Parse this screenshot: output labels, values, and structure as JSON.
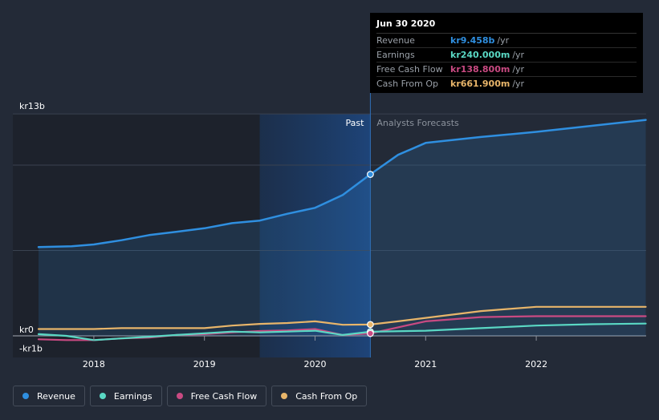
{
  "chart_data": {
    "type": "line",
    "x_range": [
      2017.5,
      2023.0
    ],
    "ylim": [
      -1.0,
      13.0
    ],
    "y_unit": "kr billions",
    "y_tick_labels": [
      {
        "value": 13,
        "label": "kr13b"
      },
      {
        "value": 0,
        "label": "kr0"
      },
      {
        "value": -1,
        "label": "-kr1b"
      }
    ],
    "x_ticks": [
      {
        "value": 2018,
        "label": "2018"
      },
      {
        "value": 2019,
        "label": "2019"
      },
      {
        "value": 2020,
        "label": "2020"
      },
      {
        "value": 2021,
        "label": "2021"
      },
      {
        "value": 2022,
        "label": "2022"
      }
    ],
    "gridlines": [
      13,
      10,
      5,
      0
    ],
    "past_label": "Past",
    "forecast_label": "Analysts Forecasts",
    "past_end_x": 2020.5,
    "highlight_start_x": 2019.5,
    "series": [
      {
        "key": "revenue",
        "name": "Revenue",
        "color": "#2f8fe0",
        "area": true,
        "points": [
          [
            2017.5,
            5.2
          ],
          [
            2017.8,
            5.25
          ],
          [
            2018.0,
            5.35
          ],
          [
            2018.25,
            5.6
          ],
          [
            2018.5,
            5.9
          ],
          [
            2018.75,
            6.1
          ],
          [
            2019.0,
            6.3
          ],
          [
            2019.25,
            6.6
          ],
          [
            2019.5,
            6.75
          ],
          [
            2019.75,
            7.15
          ],
          [
            2020.0,
            7.5
          ],
          [
            2020.25,
            8.25
          ],
          [
            2020.5,
            9.458
          ],
          [
            2020.75,
            10.6
          ],
          [
            2021.0,
            11.3
          ],
          [
            2021.5,
            11.65
          ],
          [
            2022.0,
            11.95
          ],
          [
            2022.5,
            12.3
          ],
          [
            2022.99,
            12.65
          ]
        ]
      },
      {
        "key": "earnings",
        "name": "Earnings",
        "color": "#5ad8c4",
        "area": false,
        "points": [
          [
            2017.5,
            0.1
          ],
          [
            2017.75,
            0.0
          ],
          [
            2018.0,
            -0.25
          ],
          [
            2018.25,
            -0.15
          ],
          [
            2018.5,
            -0.05
          ],
          [
            2018.75,
            0.05
          ],
          [
            2019.0,
            0.15
          ],
          [
            2019.25,
            0.25
          ],
          [
            2019.5,
            0.2
          ],
          [
            2019.75,
            0.25
          ],
          [
            2020.0,
            0.3
          ],
          [
            2020.25,
            0.05
          ],
          [
            2020.5,
            0.24
          ],
          [
            2021.0,
            0.3
          ],
          [
            2021.5,
            0.45
          ],
          [
            2022.0,
            0.6
          ],
          [
            2022.5,
            0.68
          ],
          [
            2022.99,
            0.72
          ]
        ]
      },
      {
        "key": "fcf",
        "name": "Free Cash Flow",
        "color": "#c94a82",
        "area": false,
        "points": [
          [
            2017.5,
            -0.2
          ],
          [
            2017.75,
            -0.25
          ],
          [
            2018.0,
            -0.25
          ],
          [
            2018.25,
            -0.15
          ],
          [
            2018.5,
            -0.1
          ],
          [
            2018.75,
            0.05
          ],
          [
            2019.0,
            0.1
          ],
          [
            2019.25,
            0.2
          ],
          [
            2019.5,
            0.28
          ],
          [
            2019.75,
            0.32
          ],
          [
            2020.0,
            0.4
          ],
          [
            2020.25,
            0.05
          ],
          [
            2020.5,
            0.139
          ],
          [
            2020.75,
            0.5
          ],
          [
            2021.0,
            0.85
          ],
          [
            2021.5,
            1.1
          ],
          [
            2022.0,
            1.15
          ],
          [
            2022.5,
            1.15
          ],
          [
            2022.99,
            1.15
          ]
        ]
      },
      {
        "key": "cfo",
        "name": "Cash From Op",
        "color": "#e8b56a",
        "area": false,
        "points": [
          [
            2017.5,
            0.4
          ],
          [
            2017.75,
            0.4
          ],
          [
            2018.0,
            0.4
          ],
          [
            2018.25,
            0.45
          ],
          [
            2018.5,
            0.45
          ],
          [
            2018.75,
            0.45
          ],
          [
            2019.0,
            0.45
          ],
          [
            2019.25,
            0.6
          ],
          [
            2019.5,
            0.7
          ],
          [
            2019.75,
            0.75
          ],
          [
            2020.0,
            0.85
          ],
          [
            2020.25,
            0.65
          ],
          [
            2020.5,
            0.662
          ],
          [
            2020.75,
            0.85
          ],
          [
            2021.0,
            1.05
          ],
          [
            2021.5,
            1.45
          ],
          [
            2022.0,
            1.7
          ],
          [
            2022.5,
            1.7
          ],
          [
            2022.99,
            1.7
          ]
        ]
      }
    ]
  },
  "tooltip": {
    "date": "Jun 30 2020",
    "rows": [
      {
        "label": "Revenue",
        "value": "kr9.458b",
        "unit": "/yr",
        "color": "#2f8fe0"
      },
      {
        "label": "Earnings",
        "value": "kr240.000m",
        "unit": "/yr",
        "color": "#5ad8c4"
      },
      {
        "label": "Free Cash Flow",
        "value": "kr138.800m",
        "unit": "/yr",
        "color": "#c94a82"
      },
      {
        "label": "Cash From Op",
        "value": "kr661.900m",
        "unit": "/yr",
        "color": "#e8b56a"
      }
    ]
  },
  "legend": [
    {
      "key": "revenue",
      "label": "Revenue",
      "color": "#2f8fe0"
    },
    {
      "key": "earnings",
      "label": "Earnings",
      "color": "#5ad8c4"
    },
    {
      "key": "fcf",
      "label": "Free Cash Flow",
      "color": "#c94a82"
    },
    {
      "key": "cfo",
      "label": "Cash From Op",
      "color": "#e8b56a"
    }
  ]
}
